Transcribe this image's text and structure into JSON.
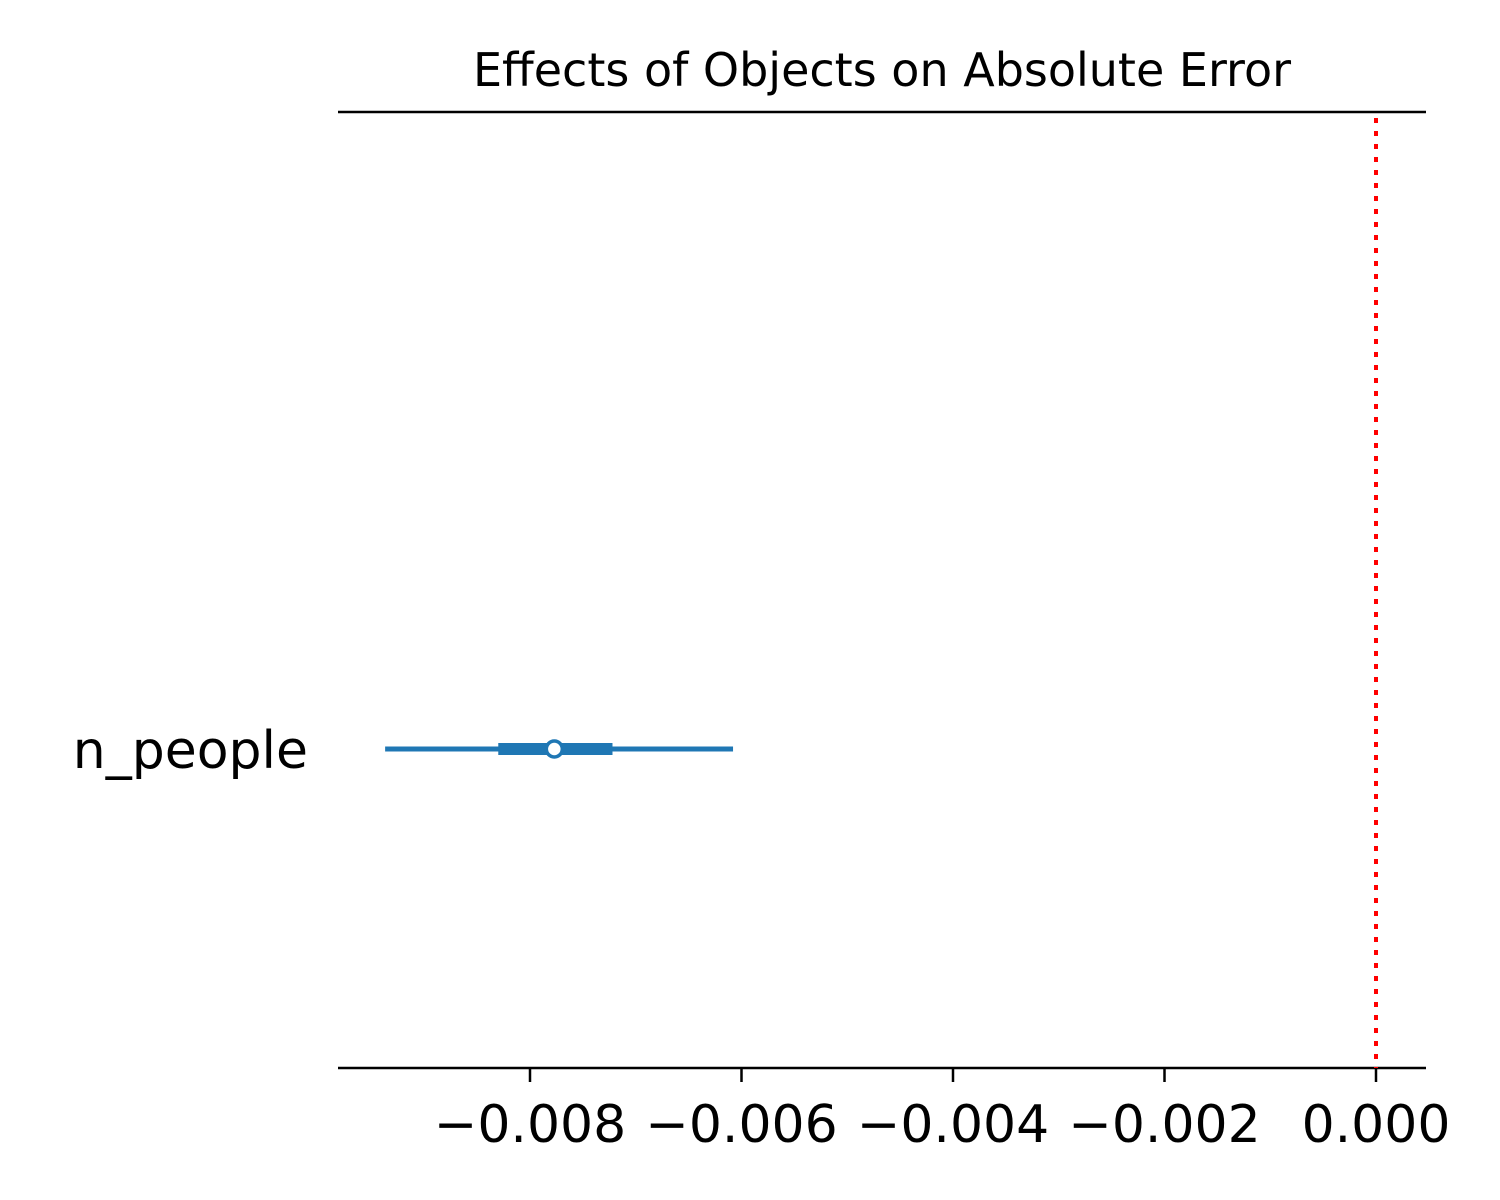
{
  "chart_data": {
    "type": "forest",
    "title": "Effects of Objects on Absolute Error",
    "xlabel": "",
    "ylabel": "",
    "xlim": [
      -0.009,
      0.0002
    ],
    "xticks": [
      -0.008,
      -0.006,
      -0.004,
      -0.002,
      0.0
    ],
    "xtick_labels": [
      "−0.008",
      "−0.006",
      "−0.004",
      "−0.002",
      "0.000"
    ],
    "reference_line": {
      "x": 0.0,
      "color": "#ff0000",
      "style": "dotted"
    },
    "series_color": "#1f77b4",
    "rows": [
      {
        "label": "n_people",
        "point": -0.00777,
        "hdi_outer": [
          -0.00937,
          -0.00608
        ],
        "hdi_inner": [
          -0.0083,
          -0.00722
        ]
      }
    ],
    "grid": false,
    "legend": "none"
  }
}
